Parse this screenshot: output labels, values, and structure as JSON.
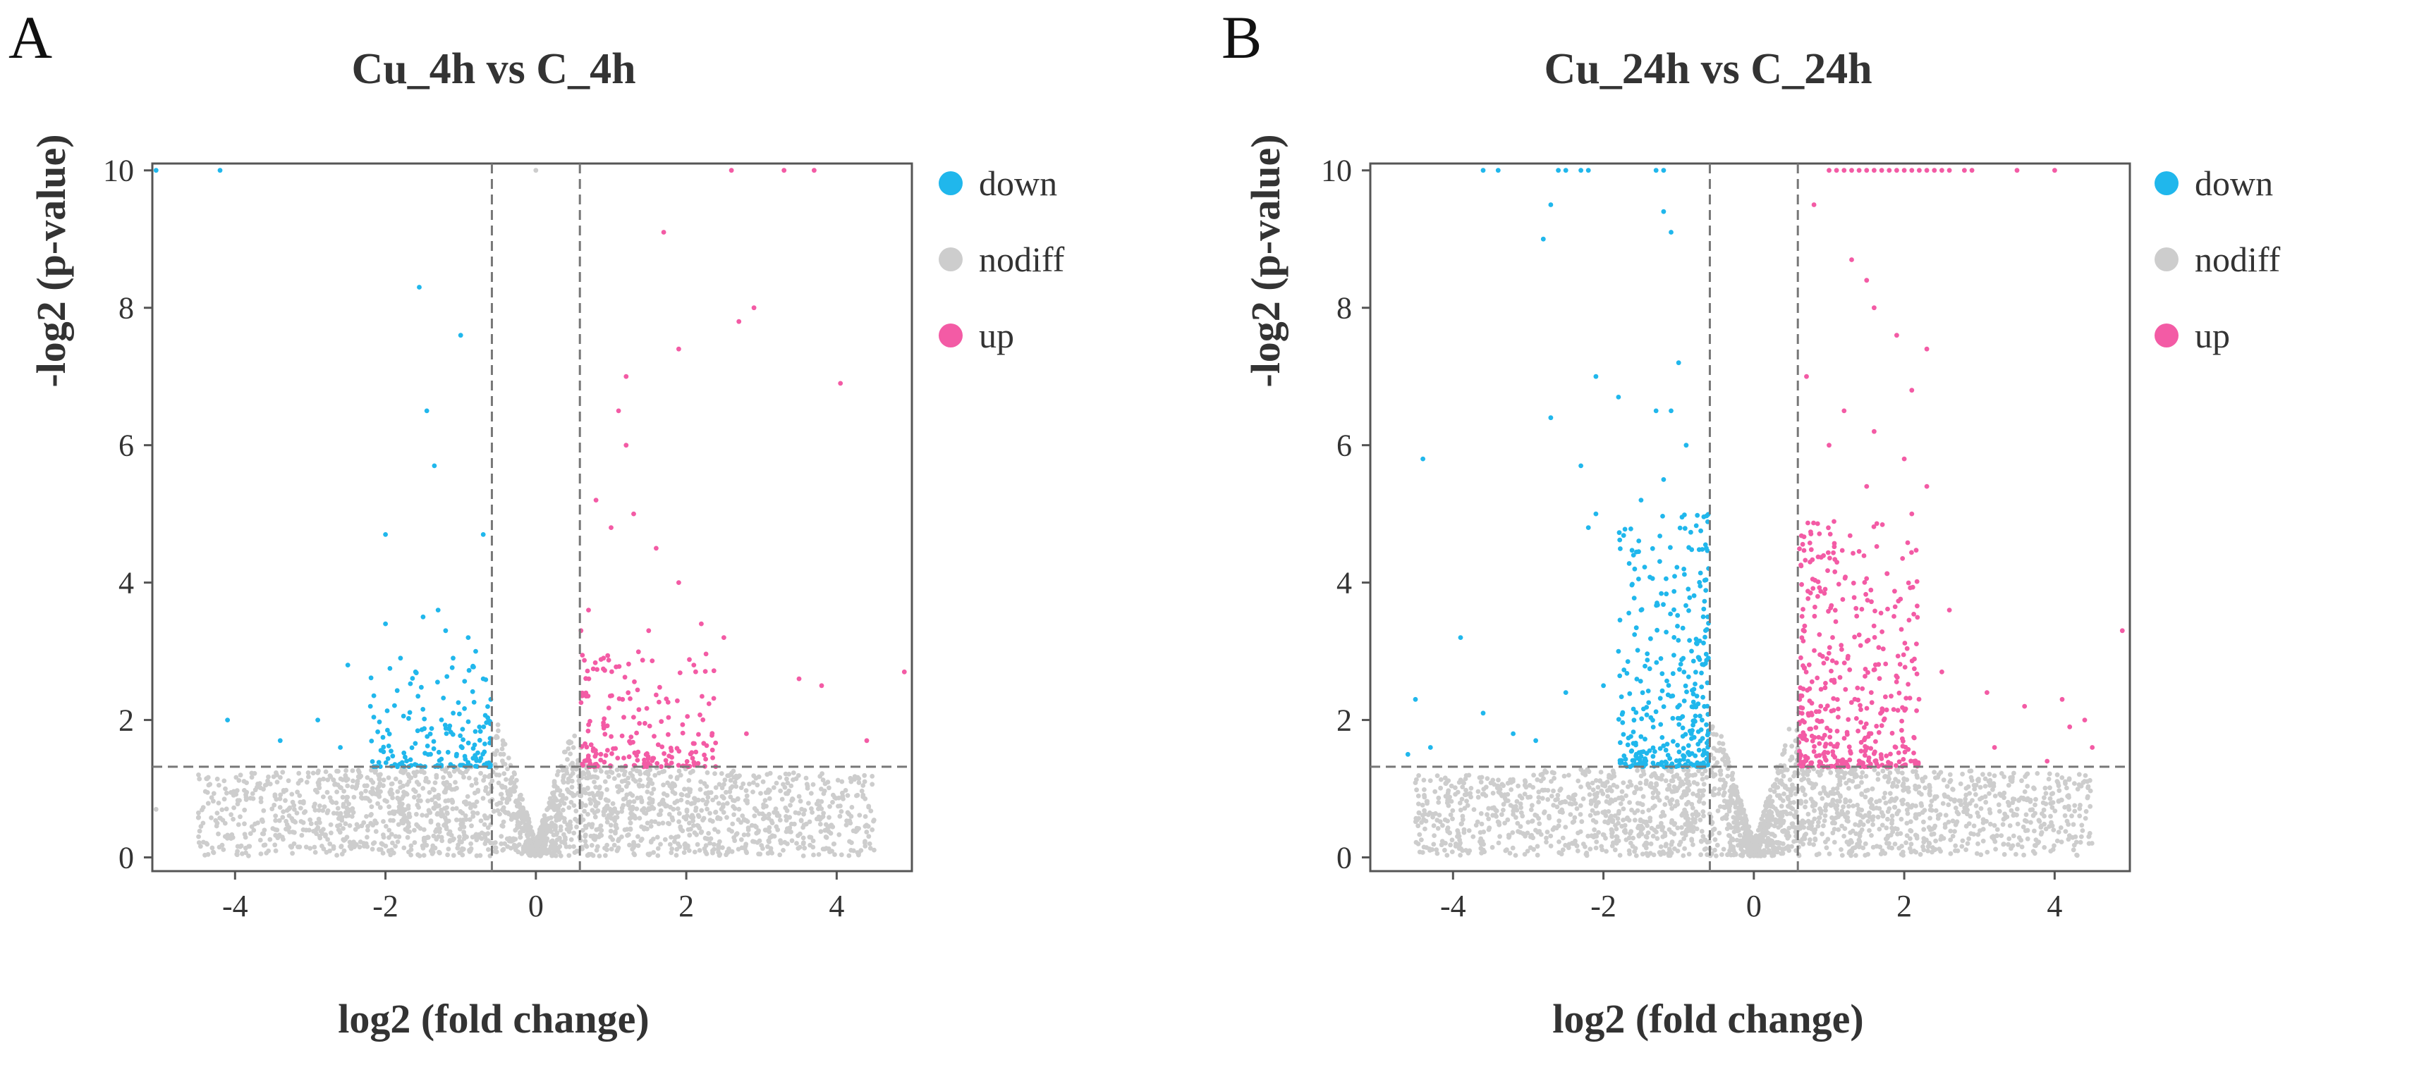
{
  "panels": [
    {
      "letter": "A"
    },
    {
      "letter": "B"
    }
  ],
  "colors": {
    "down": "#20b7ec",
    "nodiff": "#cdcdcd",
    "up": "#f35ba5",
    "axis": "#555555",
    "threshold": "#777777"
  },
  "chart_data": [
    {
      "type": "scatter",
      "title": "Cu_4h vs C_4h",
      "xlabel": "log2 (fold change)",
      "ylabel": "-log2 (p-value)",
      "xlim": [
        -5.1,
        5.0
      ],
      "ylim": [
        -0.2,
        10.1
      ],
      "xticks": [
        -4,
        -2,
        0,
        2,
        4
      ],
      "yticks": [
        0,
        2,
        4,
        6,
        8,
        10
      ],
      "thresholds": {
        "fc_down": -0.585,
        "fc_up": 0.585,
        "p": 1.32
      },
      "legend": {
        "position": "right",
        "entries": [
          {
            "key": "down",
            "label": "down"
          },
          {
            "key": "nodiff",
            "label": "nodiff"
          },
          {
            "key": "up",
            "label": "up"
          }
        ]
      },
      "series": [
        {
          "name": "down",
          "points": [
            [
              -5.05,
              10
            ],
            [
              -4.2,
              10
            ],
            [
              -1.55,
              8.3
            ],
            [
              -1.0,
              7.6
            ],
            [
              -1.45,
              6.5
            ],
            [
              -1.35,
              5.7
            ],
            [
              -2.0,
              4.7
            ],
            [
              -0.7,
              4.7
            ],
            [
              -1.3,
              3.6
            ],
            [
              -1.5,
              3.5
            ],
            [
              -2.0,
              3.4
            ],
            [
              -1.2,
              3.3
            ],
            [
              -0.9,
              3.2
            ],
            [
              -2.5,
              2.8
            ],
            [
              -1.8,
              2.9
            ],
            [
              -1.6,
              2.7
            ],
            [
              -1.1,
              2.9
            ],
            [
              -0.8,
              3.0
            ],
            [
              -4.1,
              2.0
            ],
            [
              -2.9,
              2.0
            ],
            [
              -3.4,
              1.7
            ],
            [
              -2.2,
              2.2
            ],
            [
              -2.6,
              1.6
            ],
            [
              -0.7,
              2.6
            ],
            [
              -0.6,
              2.3
            ]
          ],
          "cluster": {
            "n": 160,
            "x": [
              -2.2,
              -0.6
            ],
            "y": [
              1.32,
              2.8
            ],
            "skew": 2.2,
            "seed": 11
          }
        },
        {
          "name": "nodiff",
          "points": [
            [
              -5.05,
              0.7
            ],
            [
              0,
              10
            ]
          ],
          "cluster": {
            "n": 2200,
            "xmax": 4.5,
            "ymax": 1.32,
            "seed": 21
          }
        },
        {
          "name": "up",
          "points": [
            [
              2.6,
              10
            ],
            [
              3.3,
              10
            ],
            [
              3.7,
              10
            ],
            [
              1.7,
              9.1
            ],
            [
              2.9,
              8.0
            ],
            [
              1.9,
              7.4
            ],
            [
              2.7,
              7.8
            ],
            [
              4.05,
              6.9
            ],
            [
              1.2,
              7.0
            ],
            [
              1.1,
              6.5
            ],
            [
              1.2,
              6.0
            ],
            [
              0.8,
              5.2
            ],
            [
              1.3,
              5.0
            ],
            [
              1.6,
              4.5
            ],
            [
              1.0,
              4.8
            ],
            [
              1.9,
              4.0
            ],
            [
              2.2,
              3.4
            ],
            [
              2.5,
              3.2
            ],
            [
              3.5,
              2.6
            ],
            [
              3.8,
              2.5
            ],
            [
              4.9,
              2.7
            ],
            [
              4.4,
              1.7
            ],
            [
              2.8,
              1.8
            ],
            [
              2.1,
              2.8
            ],
            [
              1.5,
              3.3
            ],
            [
              0.7,
              3.6
            ],
            [
              0.6,
              3.3
            ],
            [
              0.9,
              2.9
            ]
          ],
          "cluster": {
            "n": 190,
            "x": [
              0.6,
              2.4
            ],
            "y": [
              1.32,
              3.0
            ],
            "skew": 2.2,
            "seed": 31
          }
        }
      ]
    },
    {
      "type": "scatter",
      "title": "Cu_24h vs C_24h",
      "xlabel": "log2 (fold change)",
      "ylabel": "-log2 (p-value)",
      "xlim": [
        -5.1,
        5.0
      ],
      "ylim": [
        -0.2,
        10.1
      ],
      "xticks": [
        -4,
        -2,
        0,
        2,
        4
      ],
      "yticks": [
        0,
        2,
        4,
        6,
        8,
        10
      ],
      "thresholds": {
        "fc_down": -0.585,
        "fc_up": 0.585,
        "p": 1.32
      },
      "legend": {
        "position": "right",
        "entries": [
          {
            "key": "down",
            "label": "down"
          },
          {
            "key": "nodiff",
            "label": "nodiff"
          },
          {
            "key": "up",
            "label": "up"
          }
        ]
      },
      "series": [
        {
          "name": "down",
          "points": [
            [
              -3.6,
              10
            ],
            [
              -3.4,
              10
            ],
            [
              -2.6,
              10
            ],
            [
              -2.5,
              10
            ],
            [
              -2.3,
              10
            ],
            [
              -2.2,
              10
            ],
            [
              -1.3,
              10
            ],
            [
              -1.2,
              10
            ],
            [
              -2.8,
              9.0
            ],
            [
              -2.7,
              9.5
            ],
            [
              -1.2,
              9.4
            ],
            [
              -1.1,
              9.1
            ],
            [
              -4.4,
              5.8
            ],
            [
              -3.9,
              3.2
            ],
            [
              -4.5,
              2.3
            ],
            [
              -4.3,
              1.6
            ],
            [
              -4.6,
              1.5
            ],
            [
              -2.7,
              6.4
            ],
            [
              -2.1,
              7.0
            ],
            [
              -1.8,
              6.7
            ],
            [
              -2.3,
              5.7
            ],
            [
              -1.5,
              5.2
            ],
            [
              -2.2,
              4.8
            ],
            [
              -2.1,
              5.0
            ],
            [
              -1.6,
              4.4
            ],
            [
              -1.3,
              6.5
            ],
            [
              -1.0,
              7.2
            ],
            [
              -1.1,
              6.5
            ],
            [
              -0.9,
              6.0
            ],
            [
              -1.2,
              5.5
            ],
            [
              -2.5,
              2.4
            ],
            [
              -2.0,
              2.5
            ],
            [
              -3.6,
              2.1
            ],
            [
              -3.2,
              1.8
            ],
            [
              -2.9,
              1.7
            ],
            [
              -1.8,
              3.0
            ],
            [
              -1.5,
              3.6
            ]
          ],
          "cluster": {
            "n": 340,
            "x": [
              -1.8,
              -0.6
            ],
            "y": [
              1.32,
              5.0
            ],
            "skew": 2.2,
            "seed": 41
          }
        },
        {
          "name": "nodiff",
          "points": [],
          "cluster": {
            "n": 2200,
            "xmax": 4.5,
            "ymax": 1.32,
            "seed": 51
          }
        },
        {
          "name": "up",
          "points": [
            [
              1.0,
              10
            ],
            [
              1.1,
              10
            ],
            [
              1.2,
              10
            ],
            [
              1.3,
              10
            ],
            [
              1.4,
              10
            ],
            [
              1.5,
              10
            ],
            [
              1.6,
              10
            ],
            [
              1.7,
              10
            ],
            [
              1.8,
              10
            ],
            [
              1.9,
              10
            ],
            [
              2.0,
              10
            ],
            [
              2.1,
              10
            ],
            [
              2.2,
              10
            ],
            [
              2.3,
              10
            ],
            [
              2.4,
              10
            ],
            [
              2.5,
              10
            ],
            [
              2.6,
              10
            ],
            [
              2.8,
              10
            ],
            [
              2.9,
              10
            ],
            [
              3.5,
              10
            ],
            [
              4.0,
              10
            ],
            [
              0.8,
              9.5
            ],
            [
              1.3,
              8.7
            ],
            [
              1.5,
              8.4
            ],
            [
              1.6,
              8.0
            ],
            [
              1.9,
              7.6
            ],
            [
              2.3,
              7.4
            ],
            [
              2.1,
              6.8
            ],
            [
              1.6,
              6.2
            ],
            [
              2.0,
              5.8
            ],
            [
              2.3,
              5.4
            ],
            [
              2.1,
              5.0
            ],
            [
              1.5,
              5.4
            ],
            [
              1.2,
              6.5
            ],
            [
              0.7,
              7.0
            ],
            [
              1.0,
              6.0
            ],
            [
              2.6,
              3.6
            ],
            [
              2.5,
              2.7
            ],
            [
              3.1,
              2.4
            ],
            [
              3.6,
              2.2
            ],
            [
              4.1,
              2.3
            ],
            [
              4.4,
              2.0
            ],
            [
              4.5,
              1.6
            ],
            [
              4.9,
              3.3
            ],
            [
              3.9,
              1.4
            ],
            [
              3.2,
              1.6
            ],
            [
              4.2,
              1.9
            ]
          ],
          "cluster": {
            "n": 420,
            "x": [
              0.6,
              2.2
            ],
            "y": [
              1.32,
              5.0
            ],
            "skew": 2.2,
            "seed": 61
          }
        }
      ]
    }
  ]
}
